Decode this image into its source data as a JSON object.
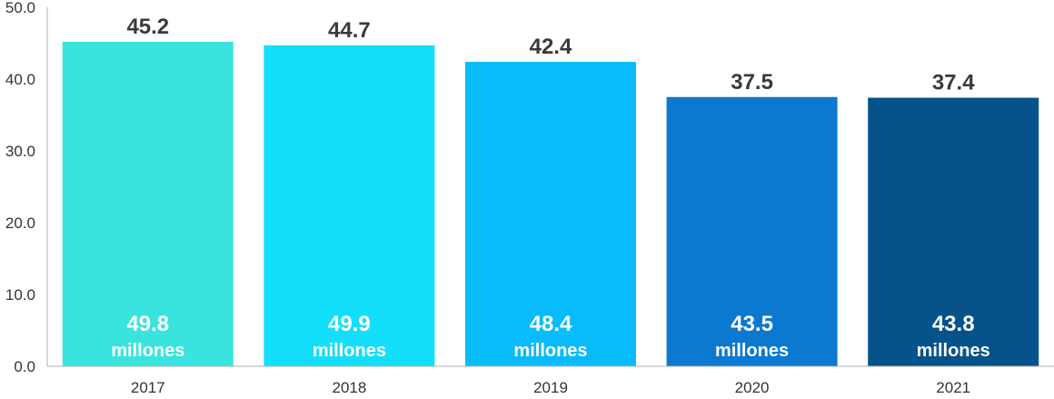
{
  "chart_data": {
    "type": "bar",
    "title": "",
    "xlabel": "",
    "ylabel": "",
    "ylim": [
      0,
      50
    ],
    "yticks": [
      "0.0",
      "10.0",
      "20.0",
      "30.0",
      "40.0",
      "50.0"
    ],
    "grid": false,
    "legend": "none",
    "categories": [
      "2017",
      "2018",
      "2019",
      "2020",
      "2021"
    ],
    "values": [
      45.2,
      44.7,
      42.4,
      37.5,
      37.4
    ],
    "value_labels": [
      "45.2",
      "44.7",
      "42.4",
      "37.5",
      "37.4"
    ],
    "inner_labels": [
      {
        "number": "49.8",
        "unit": "millones"
      },
      {
        "number": "49.9",
        "unit": "millones"
      },
      {
        "number": "48.4",
        "unit": "millones"
      },
      {
        "number": "43.5",
        "unit": "millones"
      },
      {
        "number": "43.8",
        "unit": "millones"
      }
    ],
    "colors": [
      "#38E4DD",
      "#14DFFA",
      "#08BBFA",
      "#0B79CF",
      "#06528A"
    ],
    "axis_color": "#b0b0b0",
    "text_color": "#333333",
    "value_label_color": "#3a3a3a",
    "inner_label_color": "#ffffff"
  }
}
